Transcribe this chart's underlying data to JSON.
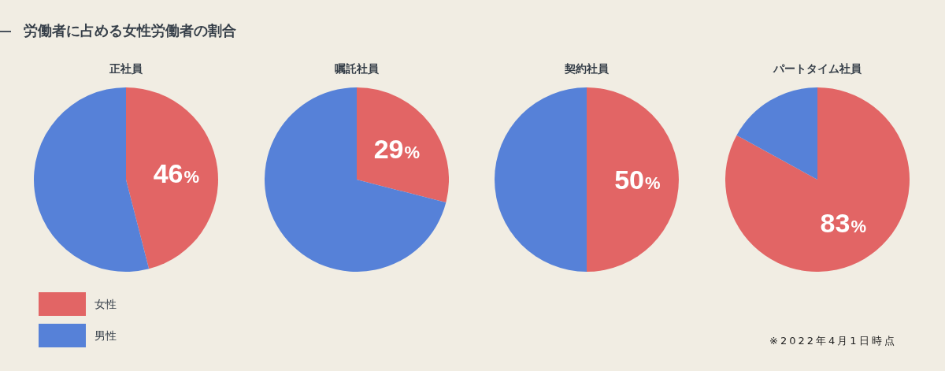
{
  "chart_data": [
    {
      "type": "other",
      "title": "労働者に占める女性労働者の割合",
      "annotations": [
        "※2022年4月1日時点"
      ]
    },
    {
      "type": "pie",
      "title": "正社員",
      "categories": [
        "女性",
        "男性"
      ],
      "values": [
        46,
        54
      ],
      "colors": [
        "#e26565",
        "#5681d8"
      ],
      "value_labels": [
        "46%",
        null
      ],
      "legend": "bottom left"
    },
    {
      "type": "pie",
      "title": "嘱託社員",
      "categories": [
        null,
        null
      ],
      "values": [
        29,
        71
      ],
      "colors": [
        "#e26565",
        "#5681d8"
      ],
      "value_labels": [
        "29%",
        null
      ]
    },
    {
      "type": "pie",
      "title": "契約社員",
      "categories": [
        null,
        null
      ],
      "values": [
        50,
        50
      ],
      "colors": [
        "#e26565",
        "#5681d8"
      ],
      "value_labels": [
        "50%",
        null
      ]
    },
    {
      "type": "pie",
      "title": "パートタイム社員",
      "categories": [
        null,
        null
      ],
      "values": [
        83,
        17
      ],
      "colors": [
        "#e26565",
        "#5681d8"
      ],
      "value_labels": [
        "83%",
        null
      ]
    }
  ]
}
